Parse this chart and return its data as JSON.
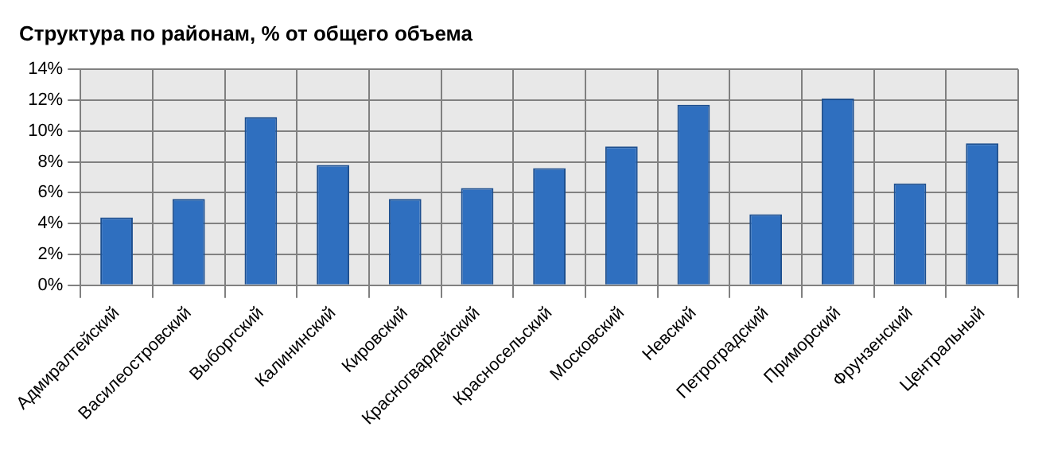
{
  "chart_data": {
    "type": "bar",
    "title": "Структура по районам, % от общего объема",
    "categories": [
      "Адмиралтейский",
      "Василеостровский",
      "Выборгский",
      "Калининский",
      "Кировский",
      "Красногвардейский",
      "Красносельский",
      "Московский",
      "Невский",
      "Петроградский",
      "Приморский",
      "Фрунзенский",
      "Центральный"
    ],
    "values": [
      4.4,
      5.6,
      10.9,
      7.8,
      5.6,
      6.3,
      7.6,
      9.0,
      11.7,
      4.6,
      12.1,
      6.6,
      9.2
    ],
    "color": "#2f6fbf",
    "ylim": [
      0,
      14
    ],
    "yticks": [
      {
        "value": 0,
        "label": "0%"
      },
      {
        "value": 2,
        "label": "2%"
      },
      {
        "value": 4,
        "label": "4%"
      },
      {
        "value": 6,
        "label": "6%"
      },
      {
        "value": 8,
        "label": "8%"
      },
      {
        "value": 10,
        "label": "10%"
      },
      {
        "value": 12,
        "label": "12%"
      },
      {
        "value": 14,
        "label": "14%"
      }
    ],
    "grid": true,
    "legend": false
  }
}
